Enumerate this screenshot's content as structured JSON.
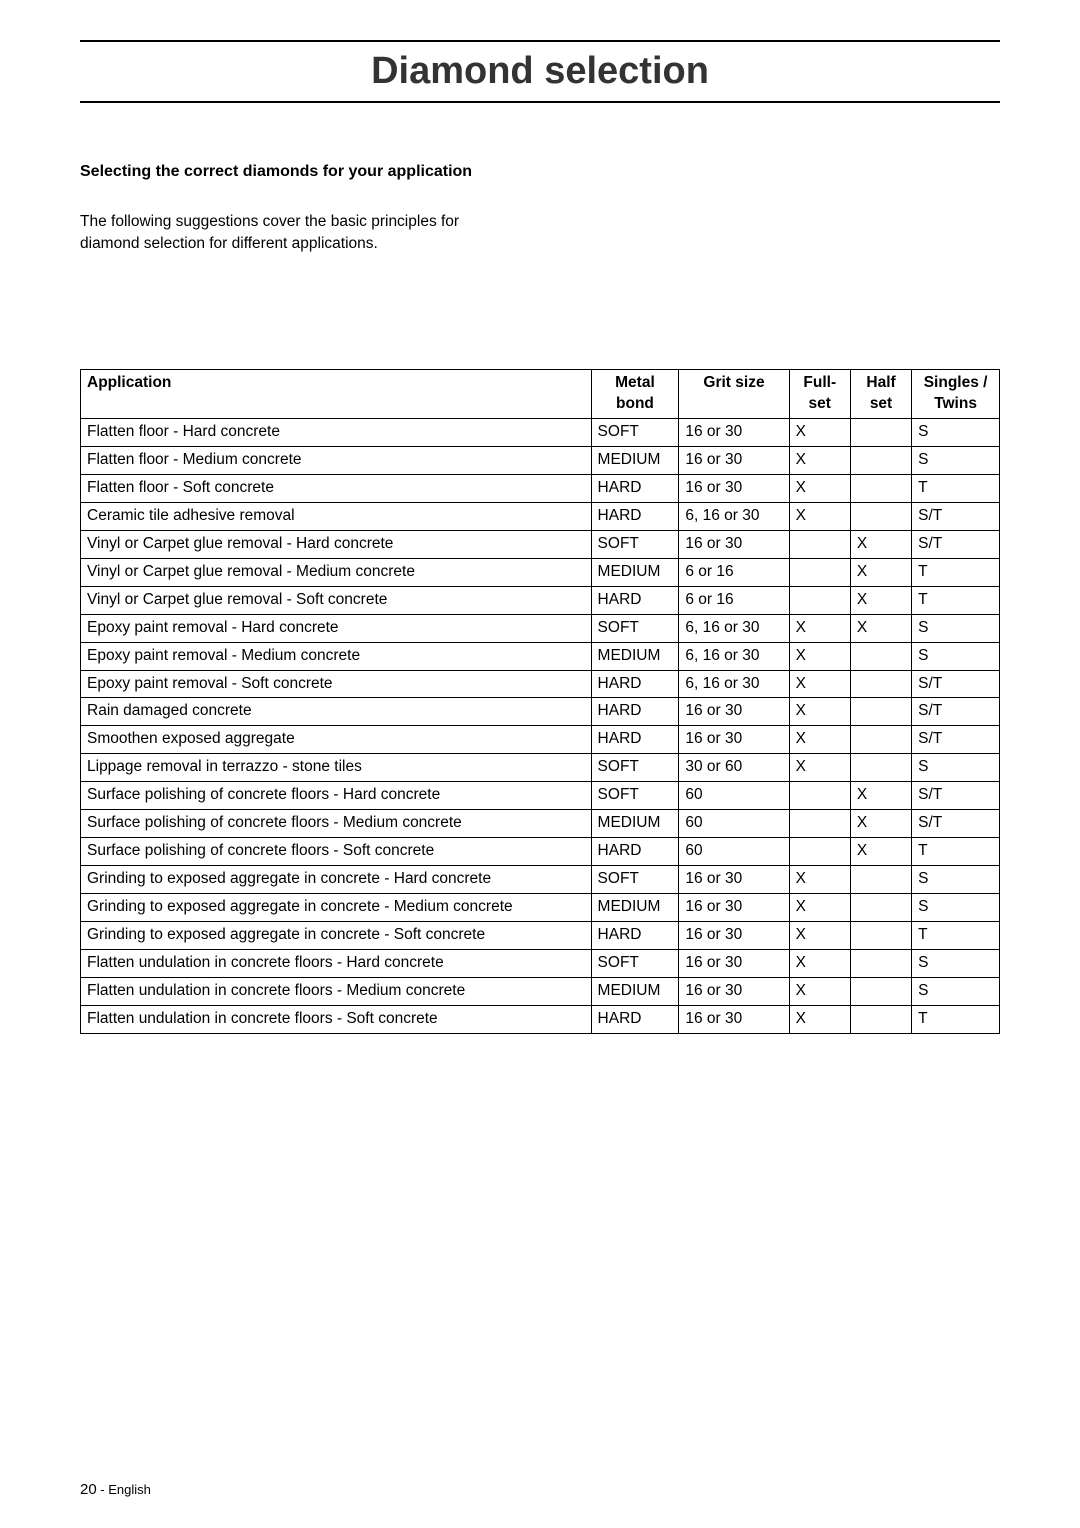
{
  "title": "Diamond selection",
  "subtitle": "Selecting the correct diamonds for your application",
  "intro_line1": "The following suggestions cover the basic principles for",
  "intro_line2": "diamond selection for different applications.",
  "footer_page": "20",
  "footer_lang": " - English",
  "columns": {
    "app": "Application",
    "bond_l1": "Metal",
    "bond_l2": "bond",
    "grit": "Grit size",
    "full_l1": "Full-",
    "full_l2": "set",
    "half_l1": "Half",
    "half_l2": "set",
    "st_l1": "Singles /",
    "st_l2": "Twins"
  },
  "rows": [
    {
      "app": "Flatten floor - Hard concrete",
      "bond": "SOFT",
      "grit": "16 or 30",
      "full": "X",
      "half": "",
      "st": "S"
    },
    {
      "app": "Flatten floor - Medium concrete",
      "bond": "MEDIUM",
      "grit": "16 or 30",
      "full": "X",
      "half": "",
      "st": "S"
    },
    {
      "app": "Flatten floor - Soft concrete",
      "bond": "HARD",
      "grit": "16 or 30",
      "full": "X",
      "half": "",
      "st": "T"
    },
    {
      "app": "Ceramic tile adhesive removal",
      "bond": "HARD",
      "grit": "6, 16 or 30",
      "full": "X",
      "half": "",
      "st": "S/T"
    },
    {
      "app": "Vinyl or Carpet glue removal - Hard concrete",
      "bond": "SOFT",
      "grit": "16 or 30",
      "full": "",
      "half": "X",
      "st": "S/T"
    },
    {
      "app": "Vinyl or Carpet glue removal - Medium concrete",
      "bond": "MEDIUM",
      "grit": "6 or 16",
      "full": "",
      "half": "X",
      "st": "T"
    },
    {
      "app": "Vinyl or Carpet glue removal - Soft concrete",
      "bond": "HARD",
      "grit": "6 or 16",
      "full": "",
      "half": "X",
      "st": "T"
    },
    {
      "app": "Epoxy paint removal - Hard concrete",
      "bond": "SOFT",
      "grit": "6, 16 or 30",
      "full": "X",
      "half": "X",
      "st": "S"
    },
    {
      "app": "Epoxy paint removal - Medium concrete",
      "bond": "MEDIUM",
      "grit": "6, 16 or 30",
      "full": "X",
      "half": "",
      "st": "S"
    },
    {
      "app": "Epoxy paint removal - Soft concrete",
      "bond": "HARD",
      "grit": "6, 16 or 30",
      "full": "X",
      "half": "",
      "st": "S/T"
    },
    {
      "app": "Rain damaged concrete",
      "bond": "HARD",
      "grit": "16 or 30",
      "full": "X",
      "half": "",
      "st": "S/T"
    },
    {
      "app": "Smoothen exposed aggregate",
      "bond": "HARD",
      "grit": "16 or 30",
      "full": "X",
      "half": "",
      "st": "S/T"
    },
    {
      "app": "Lippage removal in terrazzo - stone tiles",
      "bond": "SOFT",
      "grit": "30 or 60",
      "full": "X",
      "half": "",
      "st": "S"
    },
    {
      "app": "Surface polishing of concrete floors - Hard concrete",
      "bond": "SOFT",
      "grit": "60",
      "full": "",
      "half": "X",
      "st": "S/T"
    },
    {
      "app": "Surface polishing of concrete floors - Medium concrete",
      "bond": "MEDIUM",
      "grit": "60",
      "full": "",
      "half": "X",
      "st": "S/T"
    },
    {
      "app": "Surface polishing of concrete floors - Soft concrete",
      "bond": "HARD",
      "grit": "60",
      "full": "",
      "half": "X",
      "st": "T"
    },
    {
      "app": "Grinding to exposed aggregate in concrete - Hard concrete",
      "bond": "SOFT",
      "grit": "16 or 30",
      "full": "X",
      "half": "",
      "st": "S"
    },
    {
      "app": "Grinding to exposed aggregate in concrete - Medium concrete",
      "bond": "MEDIUM",
      "grit": "16 or 30",
      "full": "X",
      "half": "",
      "st": "S"
    },
    {
      "app": "Grinding to exposed aggregate in concrete - Soft concrete",
      "bond": "HARD",
      "grit": "16 or 30",
      "full": "X",
      "half": "",
      "st": "T"
    },
    {
      "app": "Flatten undulation in concrete floors - Hard concrete",
      "bond": "SOFT",
      "grit": "16 or 30",
      "full": "X",
      "half": "",
      "st": "S"
    },
    {
      "app": "Flatten undulation in concrete floors - Medium concrete",
      "bond": "MEDIUM",
      "grit": "16 or 30",
      "full": "X",
      "half": "",
      "st": "S"
    },
    {
      "app": "Flatten undulation in concrete floors - Soft concrete",
      "bond": "HARD",
      "grit": "16 or 30",
      "full": "X",
      "half": "",
      "st": "T"
    }
  ]
}
